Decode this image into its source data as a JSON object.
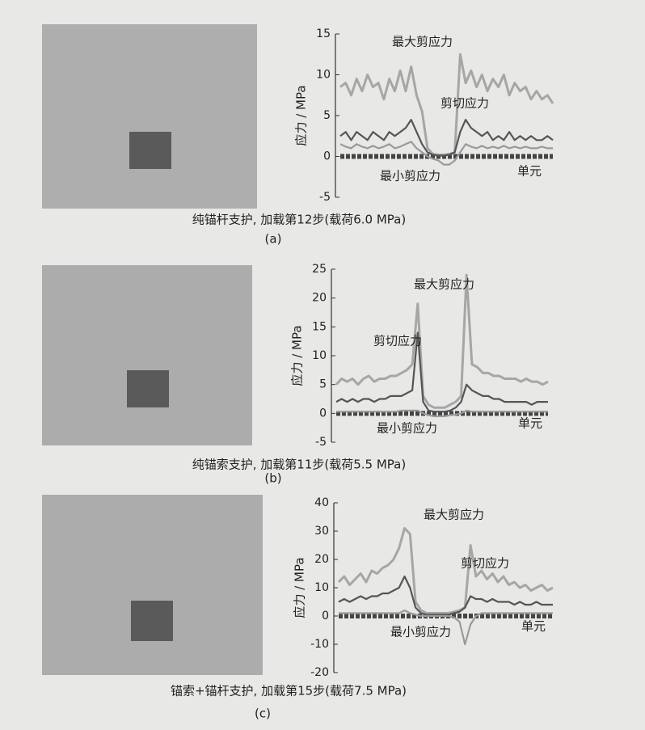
{
  "chart_data": [
    {
      "type": "line",
      "caption": "纯锚杆支护, 加载第12步(载荷6.0 MPa)",
      "panel": "(a)",
      "y_label": "应力 / MPa",
      "x_label": "单元",
      "annotations": [
        "最大剪应力",
        "剪切应力",
        "最小剪应力"
      ],
      "ylim": [
        -5,
        15
      ],
      "yticks": [
        -5,
        0,
        5,
        10,
        15
      ],
      "series": [
        {
          "name": "最大剪应力",
          "color": "#a6a6a6",
          "values": [
            8.5,
            9,
            7.5,
            9.5,
            8,
            10,
            8.5,
            9,
            7,
            9.5,
            8,
            10.5,
            8,
            11,
            7.5,
            5.5,
            1,
            0.3,
            0.2,
            0.2,
            0.3,
            0.5,
            12.5,
            9,
            10.5,
            8.5,
            10,
            8,
            9.5,
            8.5,
            10,
            7.5,
            9,
            8,
            8.5,
            7,
            8,
            7,
            7.5,
            6.5
          ]
        },
        {
          "name": "剪切应力",
          "color": "#555555",
          "values": [
            2.5,
            3,
            2,
            3,
            2.5,
            2,
            3,
            2.5,
            2,
            3,
            2.5,
            3,
            3.5,
            4.5,
            3,
            1.5,
            0.5,
            0.2,
            0.1,
            0.1,
            0.2,
            0.5,
            3,
            4.5,
            3.5,
            3,
            2.5,
            3,
            2,
            2.5,
            2,
            3,
            2,
            2.5,
            2,
            2.5,
            2,
            2,
            2.5,
            2
          ]
        },
        {
          "name": "最小剪应力",
          "color": "#9a9a9a",
          "values": [
            1.5,
            1.2,
            1,
            1.5,
            1.2,
            1,
            1.3,
            1,
            1.2,
            1.5,
            1,
            1.2,
            1.5,
            1.8,
            1,
            0.5,
            0,
            -0.3,
            -0.5,
            -1,
            -1,
            -0.5,
            0.5,
            1.5,
            1.2,
            1,
            1.3,
            1,
            1.2,
            1,
            1.3,
            1,
            1.2,
            1,
            1.2,
            1,
            1,
            1.2,
            1,
            1
          ]
        }
      ]
    },
    {
      "type": "line",
      "caption": "纯锚索支护, 加载第11步(载荷5.5 MPa)",
      "panel": "(b)",
      "y_label": "应力 / MPa",
      "x_label": "单元",
      "annotations": [
        "最大剪应力",
        "剪切应力",
        "最小剪应力"
      ],
      "ylim": [
        -5,
        25
      ],
      "yticks": [
        -5,
        0,
        5,
        10,
        15,
        20,
        25
      ],
      "series": [
        {
          "name": "最大剪应力",
          "color": "#a6a6a6",
          "values": [
            5,
            6,
            5.5,
            6,
            5,
            6,
            6.5,
            5.5,
            6,
            6,
            6.5,
            6.5,
            7,
            7.5,
            8.5,
            19,
            3,
            1.5,
            1,
            1,
            1,
            1.5,
            2,
            3,
            24,
            8.5,
            8,
            7,
            7,
            6.5,
            6.5,
            6,
            6,
            6,
            5.5,
            6,
            5.5,
            5.5,
            5,
            5.5
          ]
        },
        {
          "name": "剪切应力",
          "color": "#555555",
          "values": [
            2,
            2.5,
            2,
            2.5,
            2,
            2.5,
            2.5,
            2,
            2.5,
            2.5,
            3,
            3,
            3,
            3.5,
            4,
            14,
            2,
            0.5,
            0.3,
            0.3,
            0.3,
            0.5,
            1,
            2,
            5,
            4,
            3.5,
            3,
            3,
            2.5,
            2.5,
            2,
            2,
            2,
            2,
            2,
            1.5,
            2,
            2,
            2
          ]
        },
        {
          "name": "最小剪应力",
          "color": "#9a9a9a",
          "values": [
            0.3,
            0.3,
            0.3,
            0.3,
            0.3,
            0.3,
            0.3,
            0.3,
            0.3,
            0.3,
            0.3,
            0.3,
            0.5,
            0.5,
            0.5,
            0.5,
            0,
            -0.3,
            -0.5,
            -0.5,
            -0.5,
            -0.3,
            -0.2,
            0,
            0.5,
            0.3,
            0.3,
            0.3,
            0.3,
            0.3,
            0.3,
            0.3,
            0.3,
            0.3,
            0.3,
            0.3,
            0.3,
            0.3,
            0.3,
            0.3
          ]
        }
      ]
    },
    {
      "type": "line",
      "caption": "锚索+锚杆支护, 加载第15步(载荷7.5 MPa)",
      "panel": "(c)",
      "y_label": "应力 / MPa",
      "x_label": "单元",
      "annotations": [
        "最大剪应力",
        "剪切应力",
        "最小剪应力"
      ],
      "ylim": [
        -20,
        40
      ],
      "yticks": [
        -20,
        -10,
        0,
        10,
        20,
        30,
        40
      ],
      "series": [
        {
          "name": "最大剪应力",
          "color": "#a6a6a6",
          "values": [
            12,
            14,
            11,
            13,
            15,
            12,
            16,
            15,
            17,
            18,
            20,
            24,
            31,
            29,
            5,
            2,
            1,
            1,
            1,
            1,
            1,
            1.5,
            2,
            3,
            25,
            14,
            16,
            13,
            15,
            12,
            14,
            11,
            12,
            10,
            11,
            9,
            10,
            11,
            9,
            10
          ]
        },
        {
          "name": "剪切应力",
          "color": "#555555",
          "values": [
            5,
            6,
            5,
            6,
            7,
            6,
            7,
            7,
            8,
            8,
            9,
            10,
            14,
            10,
            3,
            1,
            0.5,
            0.5,
            0.5,
            0.5,
            0.5,
            1,
            1.5,
            3,
            7,
            6,
            6,
            5,
            6,
            5,
            5,
            5,
            4,
            5,
            4,
            4,
            5,
            4,
            4,
            4
          ]
        },
        {
          "name": "最小剪应力",
          "color": "#9a9a9a",
          "values": [
            1,
            1,
            1,
            1,
            1,
            1,
            1,
            1,
            1,
            1,
            1,
            1,
            2,
            1,
            0.5,
            0,
            0,
            0,
            0,
            0,
            0,
            -0.5,
            -2,
            -10,
            -3,
            0,
            1,
            1,
            1,
            1,
            1,
            1,
            1,
            1,
            1,
            1,
            1,
            1,
            1,
            1
          ]
        }
      ]
    }
  ]
}
